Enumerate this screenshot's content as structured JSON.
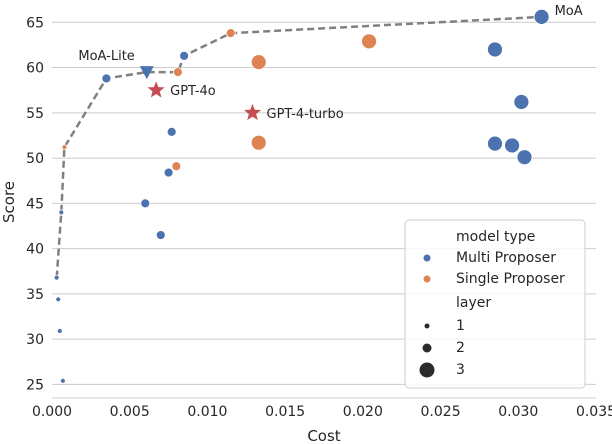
{
  "chart_data": {
    "type": "scatter",
    "title": "",
    "xlabel": "Cost",
    "ylabel": "Score",
    "xlim": [
      0.0,
      0.035
    ],
    "ylim": [
      23.5,
      66.8
    ],
    "x_ticks": [
      0.0,
      0.005,
      0.01,
      0.015,
      0.02,
      0.025,
      0.03,
      0.035
    ],
    "x_tick_labels": [
      "0.000",
      "0.005",
      "0.010",
      "0.015",
      "0.020",
      "0.025",
      "0.030",
      "0.035"
    ],
    "y_ticks": [
      25,
      30,
      35,
      40,
      45,
      50,
      55,
      60,
      65
    ],
    "y_tick_labels": [
      "25",
      "30",
      "35",
      "40",
      "45",
      "50",
      "55",
      "60",
      "65"
    ],
    "grid": "horizontal",
    "legend_position": "bottom-right",
    "legend": {
      "hue_title": "model type",
      "hue_entries": [
        {
          "label": "Multi Proposer",
          "color": "#4c72b0"
        },
        {
          "label": "Single Proposer",
          "color": "#dd8452"
        }
      ],
      "size_title": "layer",
      "size_entries": [
        {
          "label": "1",
          "layer": 1
        },
        {
          "label": "2",
          "layer": 2
        },
        {
          "label": "3",
          "layer": 3
        }
      ]
    },
    "colors": {
      "multi": "#4c72b0",
      "single": "#dd8452",
      "highlight": "#c44e52",
      "frontier": "#808080"
    },
    "series": [
      {
        "name": "Multi Proposer",
        "color": "#4c72b0",
        "points": [
          {
            "x": 0.0003,
            "y": 36.8,
            "layer": 1
          },
          {
            "x": 0.0004,
            "y": 34.4,
            "layer": 1
          },
          {
            "x": 0.0005,
            "y": 30.9,
            "layer": 1
          },
          {
            "x": 0.0007,
            "y": 25.4,
            "layer": 1
          },
          {
            "x": 0.0006,
            "y": 44.0,
            "layer": 1
          },
          {
            "x": 0.0035,
            "y": 58.8,
            "layer": 2
          },
          {
            "x": 0.006,
            "y": 45.0,
            "layer": 2
          },
          {
            "x": 0.007,
            "y": 41.5,
            "layer": 2
          },
          {
            "x": 0.0075,
            "y": 48.4,
            "layer": 2
          },
          {
            "x": 0.0077,
            "y": 52.9,
            "layer": 2
          },
          {
            "x": 0.0085,
            "y": 61.3,
            "layer": 2
          },
          {
            "x": 0.0285,
            "y": 62.0,
            "layer": 3
          },
          {
            "x": 0.0285,
            "y": 51.6,
            "layer": 3
          },
          {
            "x": 0.0296,
            "y": 51.4,
            "layer": 3
          },
          {
            "x": 0.0302,
            "y": 56.2,
            "layer": 3
          },
          {
            "x": 0.0304,
            "y": 50.1,
            "layer": 3
          },
          {
            "x": 0.0315,
            "y": 65.6,
            "layer": 3
          }
        ]
      },
      {
        "name": "Single Proposer",
        "color": "#dd8452",
        "points": [
          {
            "x": 0.0008,
            "y": 51.2,
            "layer": 1
          },
          {
            "x": 0.008,
            "y": 49.1,
            "layer": 2
          },
          {
            "x": 0.0081,
            "y": 59.5,
            "layer": 2
          },
          {
            "x": 0.0115,
            "y": 63.8,
            "layer": 2
          },
          {
            "x": 0.0133,
            "y": 60.6,
            "layer": 3
          },
          {
            "x": 0.0133,
            "y": 51.7,
            "layer": 3
          },
          {
            "x": 0.0204,
            "y": 62.9,
            "layer": 3
          }
        ]
      }
    ],
    "highlights": [
      {
        "label": "GPT-4o",
        "x": 0.0067,
        "y": 57.5,
        "marker": "star"
      },
      {
        "label": "GPT-4-turbo",
        "x": 0.0129,
        "y": 55.0,
        "marker": "star"
      },
      {
        "label": "MoA-Lite",
        "x": 0.0061,
        "y": 59.5,
        "marker": "triangle-down"
      }
    ],
    "point_annotations": [
      {
        "label": "MoA",
        "x": 0.0315,
        "y": 65.6
      }
    ],
    "frontier_line": [
      {
        "x": 0.0003,
        "y": 36.8
      },
      {
        "x": 0.0006,
        "y": 44.0
      },
      {
        "x": 0.0008,
        "y": 51.2
      },
      {
        "x": 0.0035,
        "y": 58.8
      },
      {
        "x": 0.0061,
        "y": 59.5
      },
      {
        "x": 0.0081,
        "y": 59.5
      },
      {
        "x": 0.0085,
        "y": 61.3
      },
      {
        "x": 0.0115,
        "y": 63.8
      },
      {
        "x": 0.0315,
        "y": 65.6
      }
    ]
  }
}
